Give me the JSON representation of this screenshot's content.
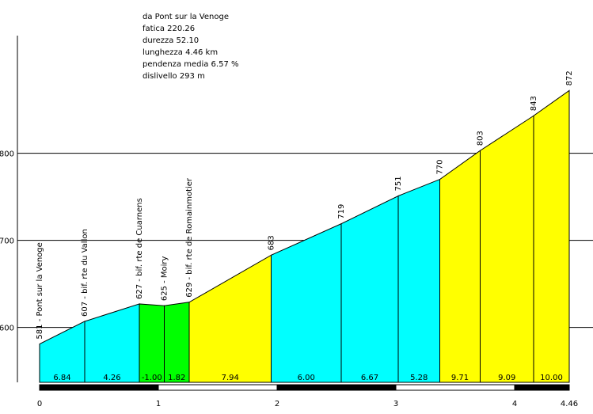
{
  "chart_data": {
    "type": "area",
    "annotations": [
      "da Pont sur la Venoge",
      "fatica 220.26",
      "durezza 52.10",
      "lunghezza 4.46 km",
      "pendenza media 6.57 %",
      "dislivello 293 m"
    ],
    "x": [
      0,
      0.38,
      0.84,
      1.05,
      1.26,
      1.95,
      2.54,
      3.02,
      3.37,
      3.71,
      4.16,
      4.46
    ],
    "elevation": [
      581,
      607,
      627,
      625,
      629,
      683,
      719,
      751,
      770,
      803,
      843,
      872
    ],
    "point_labels": [
      "581 - Pont sur la Venoge",
      "607 - bif. rte du Vallon",
      "627 - bif. rte de Cuarnens",
      "625 - Moiry",
      "629 - bif. rte de Romainmotier",
      "683",
      "719",
      "751",
      "770",
      "803",
      "843",
      "872"
    ],
    "grades": [
      6.84,
      4.26,
      -1,
      1.82,
      7.94,
      6,
      6.67,
      5.28,
      9.71,
      9.09,
      10
    ],
    "value_labels": [
      "6.84",
      "4.26",
      "-1.00",
      "1.82",
      "7.94",
      "6.00",
      "6.67",
      "5.28",
      "9.71",
      "9.09",
      "10.00"
    ],
    "colors": [
      "#00ffff",
      "#00ffff",
      "#00ff00",
      "#00ff00",
      "#ffff00",
      "#00ffff",
      "#00ffff",
      "#00ffff",
      "#ffff00",
      "#ffff00",
      "#ffff00"
    ],
    "xlim": [
      0,
      4.46
    ],
    "xticks": [
      0,
      1,
      2,
      3,
      4,
      4.46
    ],
    "ylim": [
      537,
      935
    ],
    "yticks": [
      600,
      700,
      800
    ],
    "grid": true
  }
}
